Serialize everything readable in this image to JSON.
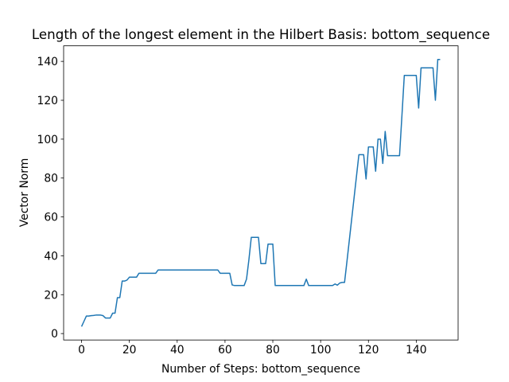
{
  "chart_data": {
    "type": "line",
    "title": "Length of the longest element in the Hilbert Basis: bottom_sequence",
    "x_label": "Number of Steps: bottom_sequence",
    "y_label": "Vector Norm",
    "x": [
      0,
      1,
      2,
      3,
      4,
      5,
      6,
      7,
      8,
      9,
      10,
      11,
      12,
      13,
      14,
      15,
      16,
      17,
      18,
      19,
      20,
      21,
      22,
      23,
      24,
      25,
      26,
      27,
      28,
      29,
      30,
      31,
      32,
      33,
      34,
      35,
      36,
      37,
      38,
      39,
      40,
      41,
      42,
      43,
      44,
      45,
      46,
      47,
      48,
      49,
      50,
      51,
      52,
      53,
      54,
      55,
      56,
      57,
      58,
      59,
      60,
      61,
      62,
      63,
      64,
      65,
      66,
      67,
      68,
      69,
      70,
      71,
      72,
      73,
      74,
      75,
      76,
      77,
      78,
      79,
      80,
      81,
      82,
      83,
      84,
      85,
      86,
      87,
      88,
      89,
      90,
      91,
      92,
      93,
      94,
      95,
      96,
      97,
      98,
      99,
      100,
      101,
      102,
      103,
      104,
      105,
      106,
      107,
      108,
      109,
      110,
      111,
      112,
      113,
      114,
      115,
      116,
      117,
      118,
      119,
      120,
      121,
      122,
      123,
      124,
      125,
      126,
      127,
      128,
      129,
      130,
      131,
      132,
      133,
      134,
      135,
      136,
      137,
      138,
      139,
      140,
      141,
      142,
      143,
      144,
      145,
      146,
      147,
      148,
      149,
      150
    ],
    "series": [
      {
        "color": "#1f77b4",
        "values": [
          3.6,
          6.3,
          9,
          9,
          9.2,
          9.3,
          9.5,
          9.5,
          9.5,
          9.2,
          8,
          8,
          8,
          10.5,
          10.5,
          18.5,
          18.5,
          27,
          27,
          27.5,
          29,
          29,
          29,
          29,
          31,
          31,
          31,
          31,
          31,
          31,
          31,
          31,
          32.7,
          32.7,
          32.7,
          32.7,
          32.7,
          32.7,
          32.7,
          32.7,
          32.7,
          32.7,
          32.7,
          32.7,
          32.7,
          32.7,
          32.7,
          32.7,
          32.7,
          32.7,
          32.7,
          32.7,
          32.7,
          32.7,
          32.7,
          32.7,
          32.7,
          32.7,
          31,
          31,
          31,
          31,
          31,
          25,
          24.7,
          24.7,
          24.7,
          24.7,
          24.7,
          28,
          38,
          49.5,
          49.5,
          49.5,
          49.5,
          36,
          36,
          36,
          46,
          46,
          46,
          24.7,
          24.7,
          24.7,
          24.7,
          24.7,
          24.7,
          24.7,
          24.7,
          24.7,
          24.7,
          24.7,
          24.7,
          24.7,
          28,
          24.7,
          24.7,
          24.7,
          24.7,
          24.7,
          24.7,
          24.7,
          24.7,
          24.7,
          24.7,
          24.7,
          25.5,
          24.9,
          26,
          26.3,
          26.3,
          37,
          48,
          59,
          70,
          81,
          92,
          92,
          92,
          79.5,
          96,
          96,
          96,
          83.5,
          100,
          100,
          87.5,
          104,
          91.5,
          91.5,
          91.5,
          91.5,
          91.5,
          91.5,
          112,
          132.8,
          132.8,
          132.8,
          132.8,
          132.8,
          132.8,
          116,
          136.7,
          136.7,
          136.7,
          136.7,
          136.7,
          136.7,
          120,
          141,
          141
        ]
      }
    ],
    "xlim": [
      -7.5,
      157.5
    ],
    "ylim": [
      -3.3,
      148
    ],
    "xticks": [
      0,
      20,
      40,
      60,
      80,
      100,
      120,
      140
    ],
    "yticks": [
      0,
      20,
      40,
      60,
      80,
      100,
      120,
      140
    ]
  }
}
